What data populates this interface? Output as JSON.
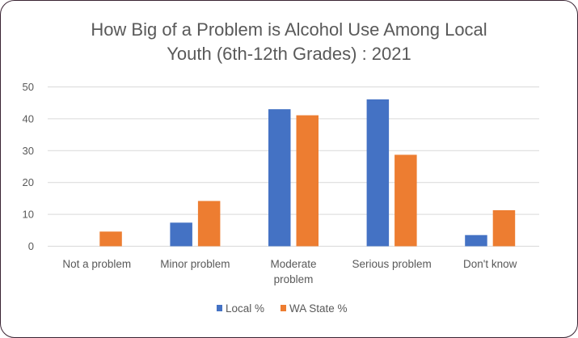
{
  "chart_data": {
    "type": "bar",
    "title_line1": "How Big of a Problem is Alcohol Use Among Local",
    "title_line2": "Youth (6th-12th Grades) : 2021",
    "categories": [
      [
        "Not a problem"
      ],
      [
        "Minor problem"
      ],
      [
        "Moderate",
        "problem"
      ],
      [
        "Serious problem"
      ],
      [
        "Don't know"
      ]
    ],
    "series": [
      {
        "name": "Local %",
        "color": "#4472c4",
        "values": [
          0,
          7.4,
          43.0,
          46.1,
          3.5
        ]
      },
      {
        "name": "WA State %",
        "color": "#ed7d31",
        "values": [
          4.6,
          14.2,
          41.1,
          28.7,
          11.3
        ]
      }
    ],
    "ylim": [
      0,
      50
    ],
    "yticks": [
      0,
      10,
      20,
      30,
      40,
      50
    ],
    "grid": true,
    "legend": "bottom",
    "xlabel": "",
    "ylabel": ""
  }
}
